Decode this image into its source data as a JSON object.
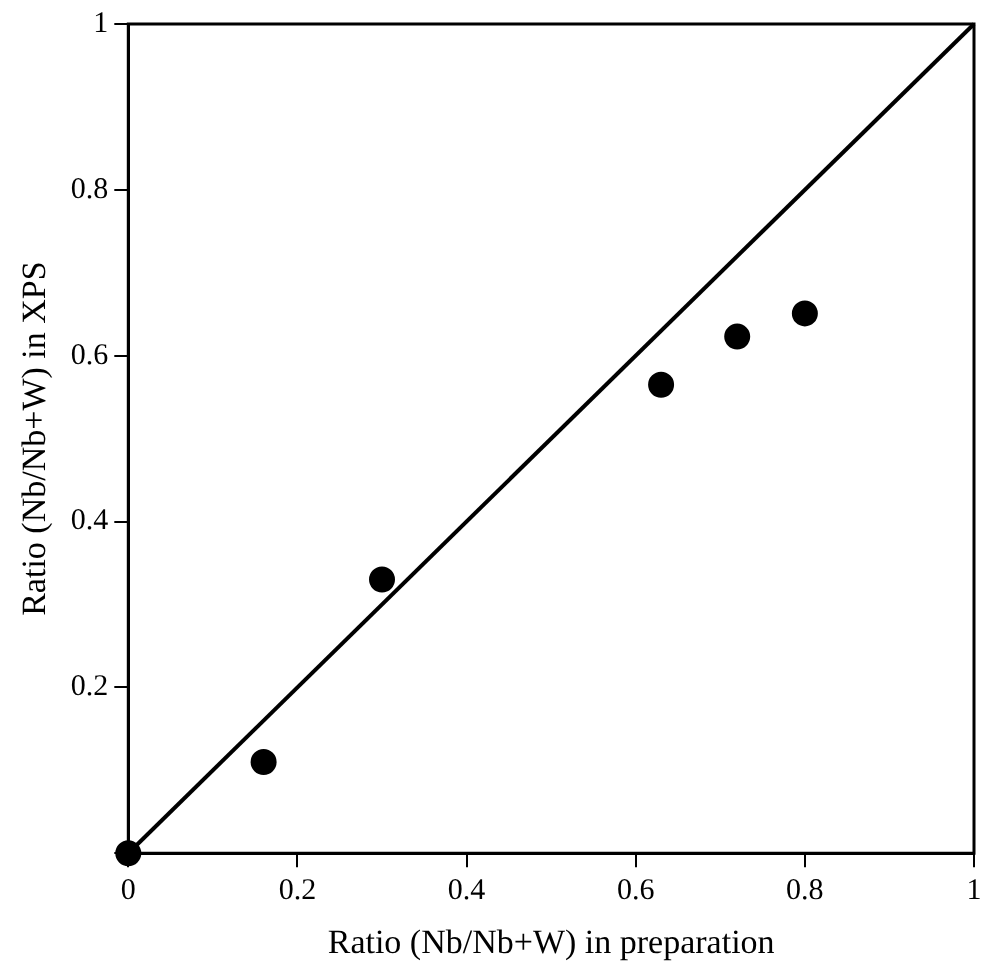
{
  "chart_data": {
    "type": "scatter",
    "xlabel": "Ratio (Nb/Nb+W) in preparation",
    "ylabel": "Ratio (Nb/Nb+W) in XPS",
    "xlim": [
      0,
      1
    ],
    "ylim": [
      0,
      1
    ],
    "xticks": [
      0,
      0.2,
      0.4,
      0.6,
      0.8,
      1
    ],
    "yticks": [
      {
        "value": 0,
        "label": null
      },
      0.2,
      0.4,
      0.6,
      0.8,
      1
    ],
    "grid": false,
    "legend": false,
    "marker": "circle",
    "series": [
      {
        "color": "#000000",
        "x": [
          0,
          0.16,
          0.3,
          0.63,
          0.72,
          0.8
        ],
        "values": [
          0,
          0.11,
          0.33,
          0.565,
          0.623,
          0.651
        ]
      },
      {
        "type": "line",
        "color": "#000000",
        "line_style": "solid",
        "marker": "none",
        "x": [
          0,
          1
        ],
        "values": [
          0,
          1
        ]
      }
    ]
  }
}
